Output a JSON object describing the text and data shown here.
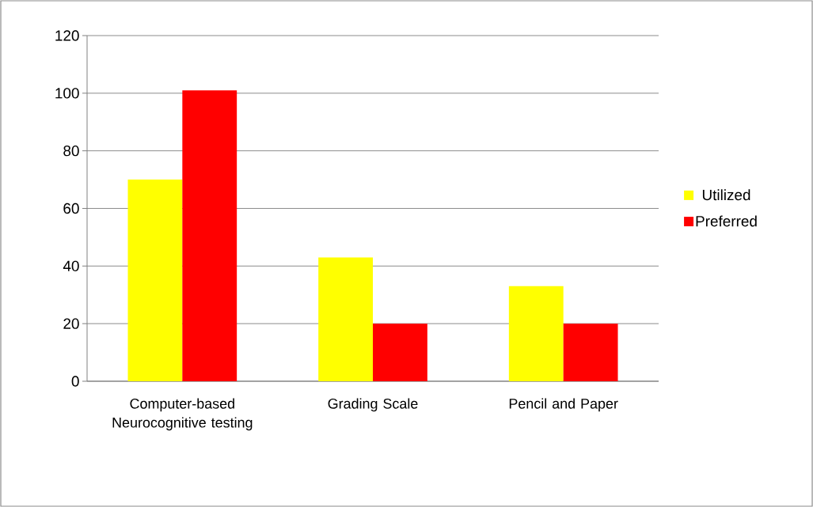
{
  "chart_data": {
    "type": "bar",
    "categories": [
      "Computer-based Neurocognitive testing",
      "Grading Scale",
      "Pencil and Paper"
    ],
    "series": [
      {
        "name": "Utilized",
        "color": "#ffff00",
        "values": [
          70,
          43,
          33
        ]
      },
      {
        "name": "Preferred",
        "color": "#ff0000",
        "values": [
          101,
          20,
          20
        ]
      }
    ],
    "ylim": [
      0,
      120
    ],
    "yticks": [
      0,
      20,
      40,
      60,
      80,
      100,
      120
    ],
    "grid": "y",
    "legend": "right"
  }
}
